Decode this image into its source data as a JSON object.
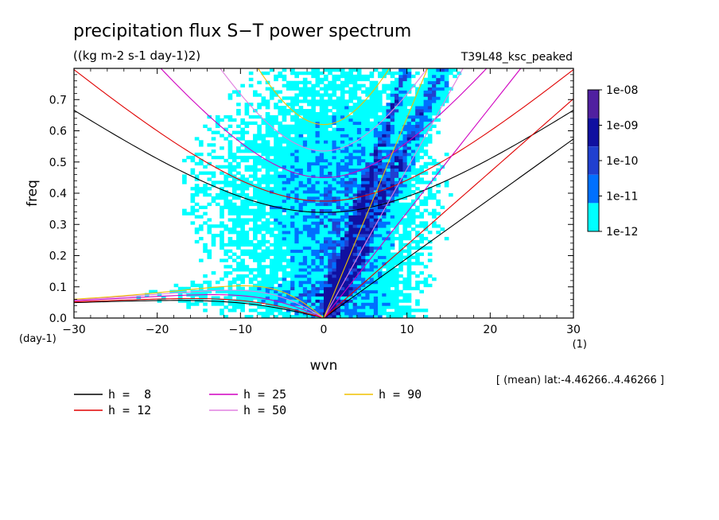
{
  "chart_data": {
    "type": "heatmap",
    "title": "precipitation flux S−T power spectrum",
    "subtitle": "((kg m-2 s-1 day-1)2)",
    "run_label": "T39L48_ksc_peaked",
    "xlabel": "wvn",
    "ylabel": "freq",
    "x_unit": "(1)",
    "y_unit": "(day-1)",
    "footnote": "[ (mean) lat:-4.46266..4.46266 ]",
    "xlim": [
      -30,
      30
    ],
    "ylim": [
      0,
      0.8
    ],
    "x_ticks": [
      {
        "value": -30,
        "label": "−30"
      },
      {
        "value": -20,
        "label": "−20"
      },
      {
        "value": -10,
        "label": "−10"
      },
      {
        "value": 0,
        "label": "0"
      },
      {
        "value": 10,
        "label": "10"
      },
      {
        "value": 20,
        "label": "20"
      },
      {
        "value": 30,
        "label": "30"
      }
    ],
    "y_ticks": [
      {
        "value": 0.0,
        "label": "0.0"
      },
      {
        "value": 0.1,
        "label": "0.1"
      },
      {
        "value": 0.2,
        "label": "0.2"
      },
      {
        "value": 0.3,
        "label": "0.3"
      },
      {
        "value": 0.4,
        "label": "0.4"
      },
      {
        "value": 0.5,
        "label": "0.5"
      },
      {
        "value": 0.6,
        "label": "0.6"
      },
      {
        "value": 0.7,
        "label": "0.7"
      }
    ],
    "colorbar": {
      "levels": [
        {
          "label": "1e-12",
          "color": "#00ffff"
        },
        {
          "label": "1e-11",
          "color": "#0070ff"
        },
        {
          "label": "1e-10",
          "color": "#2040d0"
        },
        {
          "label": "1e-09",
          "color": "#1010a0"
        },
        {
          "label": "1e-08",
          "color": "#5020a0"
        }
      ],
      "tick_labels": [
        "1e-08",
        "1e-09",
        "1e-10",
        "1e-11",
        "1e-12"
      ]
    },
    "dispersion_curves": [
      {
        "name": "h =  8",
        "color": "#000000"
      },
      {
        "name": "h = 12",
        "color": "#e00000"
      },
      {
        "name": "h = 25",
        "color": "#d000c0"
      },
      {
        "name": "h = 50",
        "color": "#e080e0"
      },
      {
        "name": "h = 90",
        "color": "#f0c000"
      }
    ],
    "grid": false
  }
}
